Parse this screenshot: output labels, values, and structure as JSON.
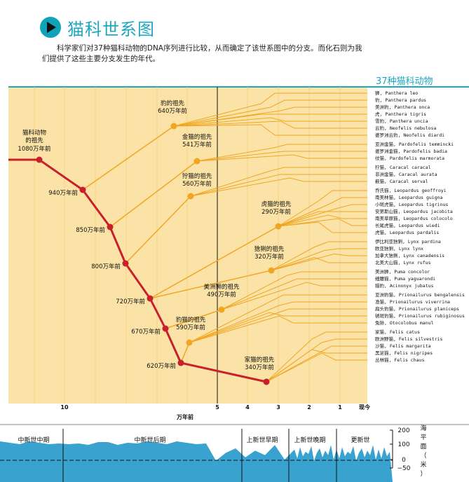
{
  "header": {
    "title": "猫科世系图",
    "intro": "科学家们对37种猫科动物的DNA序列进行比较，从而确定了该世系图中的分支。而化石则为我们提供了这些主要分支发生的年代。",
    "panel_title": "37种猫科动物"
  },
  "root": {
    "name": "猫科动物\n的祖先",
    "age": "1080万年前"
  },
  "backbone_nodes": [
    {
      "age": "940万年前"
    },
    {
      "age": "850万年前"
    },
    {
      "age": "800万年前"
    },
    {
      "age": "720万年前"
    },
    {
      "age": "670万年前"
    },
    {
      "age": "620万年前"
    }
  ],
  "lineages": [
    {
      "name": "豹的祖先",
      "age": "640万年前"
    },
    {
      "name": "金猫的祖先",
      "age": "541万年前"
    },
    {
      "name": "狞猫的祖先",
      "age": "560万年前"
    },
    {
      "name": "虎猫的祖先",
      "age": "290万年前"
    },
    {
      "name": "猞猁的祖先",
      "age": "320万年前"
    },
    {
      "name": "美洲狮的祖先",
      "age": "490万年前"
    },
    {
      "name": "豹猫的祖先",
      "age": "590万年前"
    },
    {
      "name": "家猫的祖先",
      "age": "340万年前"
    }
  ],
  "species": [
    "狮, Panthera leo",
    "豹, Panthera pardus",
    "美洲豹, Panthera onca",
    "虎, Panthera tigris",
    "雪豹, Panthera uncia",
    "云豹, Neofelis nebulosa",
    "婆罗洲云豹, Neofelis diardi",
    "亚洲金猫, Pardofelis temmincki",
    "婆罗洲金猫, Pardofelis badia",
    "纹猫, Pardofelis marmorata",
    "狞猫, Caracal caracal",
    "非洲金猫, Caracal aurata",
    "薮猫, Caracal serval",
    "乔氏猫, Leopardus geoffroyi",
    "南美林猫, Leopardus guigna",
    "小斑虎猫, Leopardus tigrinus",
    "安第斯山猫, Leopardus jacobita",
    "南美草原猫, Leopardus colocolo",
    "长尾虎猫, Leopardus wiedi",
    "虎猫, Leopardus pardalis",
    "伊比利亚猞猁, Lynx pardina",
    "欧亚猞猁, Lynx lynx",
    "加拿大猞猁, Lynx canadensis",
    "北美大山猫, Lynx rufus",
    "美洲狮, Puma concolor",
    "细腰猫, Puma yaguarondi",
    "猎豹, Acinonyx jubatus",
    "亚洲豹猫, Prionailurus bengalensis",
    "渔猫, Prionailurus viverrina",
    "扁头豹猫, Prionailurus planiceps",
    "锈斑豹猫, Prionailurus rubiginosus",
    "兔狲, Otocolobus manul",
    "家猫, Felis catus",
    "欧洲野猫, Felis silvestris",
    "沙猫, Felis margarita",
    "黑足猫, Felis nigripes",
    "丛林猫, Felis chaus"
  ],
  "axis": {
    "ticks": [
      "10",
      "5",
      "4",
      "3",
      "2",
      "1",
      "现今"
    ],
    "label": "万年前"
  },
  "epochs": [
    "中新世中期",
    "中新世后期",
    "上新世早期",
    "上新世晚期",
    "更新世"
  ],
  "sea_level": {
    "label": "海平面（米）",
    "ticks": [
      "200",
      "100",
      "0",
      "−50"
    ]
  },
  "colors": {
    "panel_bg": "#fbe3a7",
    "backbone": "#c8202b",
    "branch": "#f0a623",
    "accent": "#1ea7c1",
    "sea": "#3aa2cf"
  }
}
